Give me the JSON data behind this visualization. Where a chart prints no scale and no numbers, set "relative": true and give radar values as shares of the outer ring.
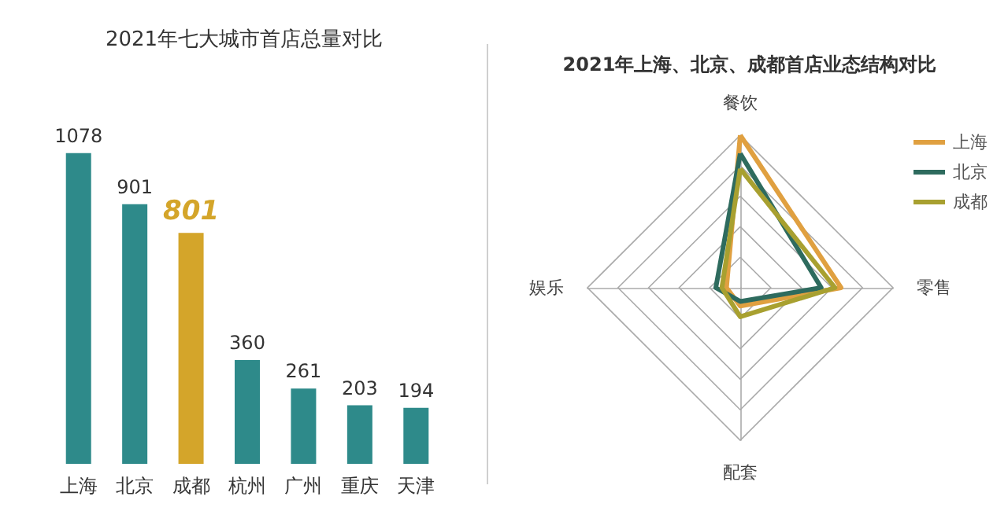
{
  "chart_data": [
    {
      "type": "bar",
      "title": "2021年七大城市首店总量对比",
      "categories": [
        "上海",
        "北京",
        "成都",
        "杭州",
        "广州",
        "重庆",
        "天津"
      ],
      "values": [
        1078,
        901,
        801,
        360,
        261,
        203,
        194
      ],
      "colors": [
        "#2e8a8a",
        "#2e8a8a",
        "#d4a52a",
        "#2e8a8a",
        "#2e8a8a",
        "#2e8a8a",
        "#2e8a8a"
      ],
      "data_labels": true
    },
    {
      "type": "radar",
      "title": "2021年上海、北京、成都首店业态结构对比",
      "categories": [
        "餐饮",
        "零售",
        "配套",
        "娱乐"
      ],
      "relative": true,
      "legend": "top right",
      "marker": "none",
      "series": [
        {
          "name": "上海",
          "color": "#e0a040",
          "values": [
            1.0,
            0.66,
            0.12,
            0.09
          ]
        },
        {
          "name": "北京",
          "color": "#2e6b5e",
          "values": [
            0.88,
            0.53,
            0.09,
            0.16
          ]
        },
        {
          "name": "成都",
          "color": "#a8a030",
          "values": [
            0.78,
            0.62,
            0.19,
            0.12
          ]
        }
      ]
    }
  ]
}
